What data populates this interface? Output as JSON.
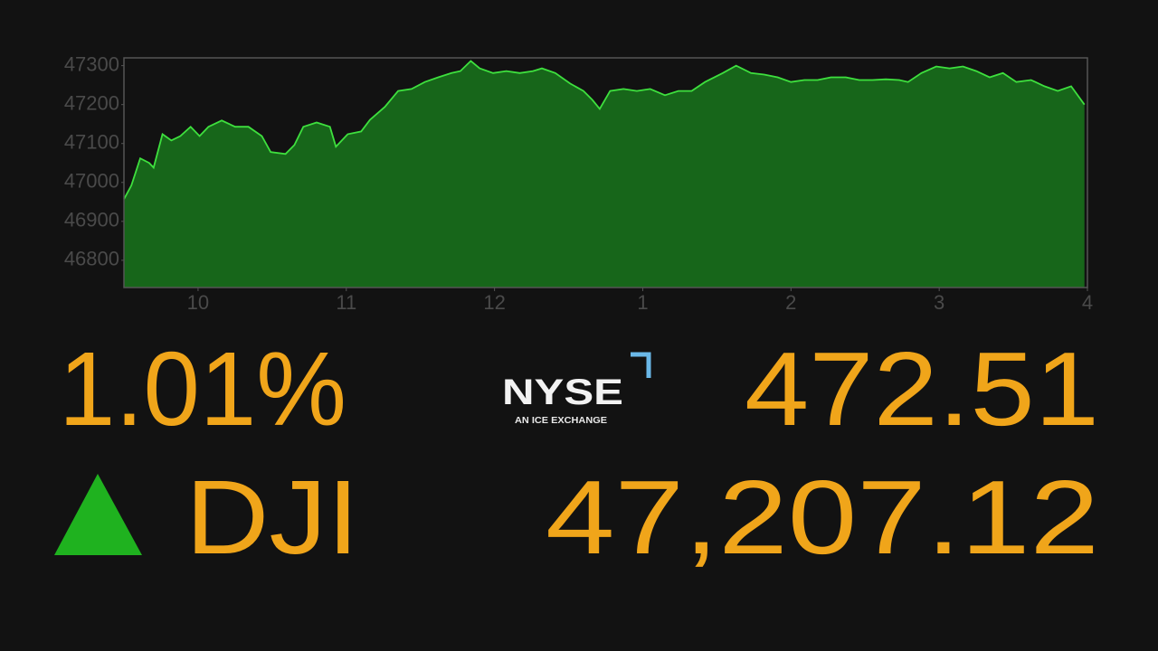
{
  "chart_data": {
    "type": "area",
    "x": [
      9.5,
      9.55,
      9.61,
      9.67,
      9.7,
      9.76,
      9.82,
      9.88,
      9.95,
      10.01,
      10.07,
      10.16,
      10.25,
      10.34,
      10.43,
      10.49,
      10.59,
      10.65,
      10.71,
      10.8,
      10.89,
      10.93,
      11.01,
      11.1,
      11.16,
      11.26,
      11.35,
      11.44,
      11.53,
      11.62,
      11.71,
      11.77,
      11.84,
      11.9,
      11.99,
      12.08,
      12.17,
      12.26,
      12.32,
      12.41,
      12.51,
      12.6,
      12.66,
      12.71,
      12.78,
      12.87,
      12.96,
      13.05,
      13.15,
      13.24,
      13.33,
      13.42,
      13.54,
      13.63,
      13.73,
      13.82,
      13.91,
      14.0,
      14.09,
      14.18,
      14.27,
      14.37,
      14.46,
      14.55,
      14.64,
      14.73,
      14.79,
      14.88,
      14.98,
      15.07,
      15.16,
      15.25,
      15.34,
      15.43,
      15.52,
      15.62,
      15.71,
      15.8,
      15.89,
      15.98
    ],
    "values": [
      46957,
      46992,
      47062,
      47050,
      47038,
      47124,
      47108,
      47119,
      47143,
      47119,
      47143,
      47159,
      47143,
      47143,
      47119,
      47078,
      47073,
      47096,
      47143,
      47154,
      47143,
      47092,
      47124,
      47131,
      47161,
      47194,
      47235,
      47240,
      47258,
      47270,
      47281,
      47286,
      47312,
      47293,
      47281,
      47286,
      47281,
      47286,
      47293,
      47281,
      47254,
      47235,
      47212,
      47189,
      47235,
      47240,
      47235,
      47240,
      47224,
      47235,
      47235,
      47258,
      47281,
      47300,
      47281,
      47277,
      47270,
      47258,
      47263,
      47263,
      47270,
      47270,
      47263,
      47263,
      47265,
      47263,
      47258,
      47281,
      47298,
      47293,
      47298,
      47286,
      47270,
      47281,
      47258,
      47263,
      47247,
      47235,
      47247,
      47200
    ],
    "line_color": "#3ee03e",
    "fill_color": "#17661a",
    "xlim": [
      9.5,
      16
    ],
    "xticks": [
      10,
      11,
      12,
      {
        "value": 13,
        "label": "1"
      },
      {
        "value": 14,
        "label": "2"
      },
      {
        "value": 15,
        "label": "3"
      },
      {
        "value": 16,
        "label": "4"
      }
    ],
    "ylim": [
      46730,
      47320
    ],
    "yticks": [
      46800,
      46900,
      47000,
      47100,
      47200,
      47300
    ],
    "grid": false
  },
  "quote": {
    "percent_change": "1.01%",
    "point_change": "472.51",
    "symbol": "DJI",
    "price": "47,207.12",
    "direction_color": "#1fb21f"
  },
  "logo": {
    "name": "NYSE",
    "tagline": "AN ICE EXCHANGE"
  }
}
